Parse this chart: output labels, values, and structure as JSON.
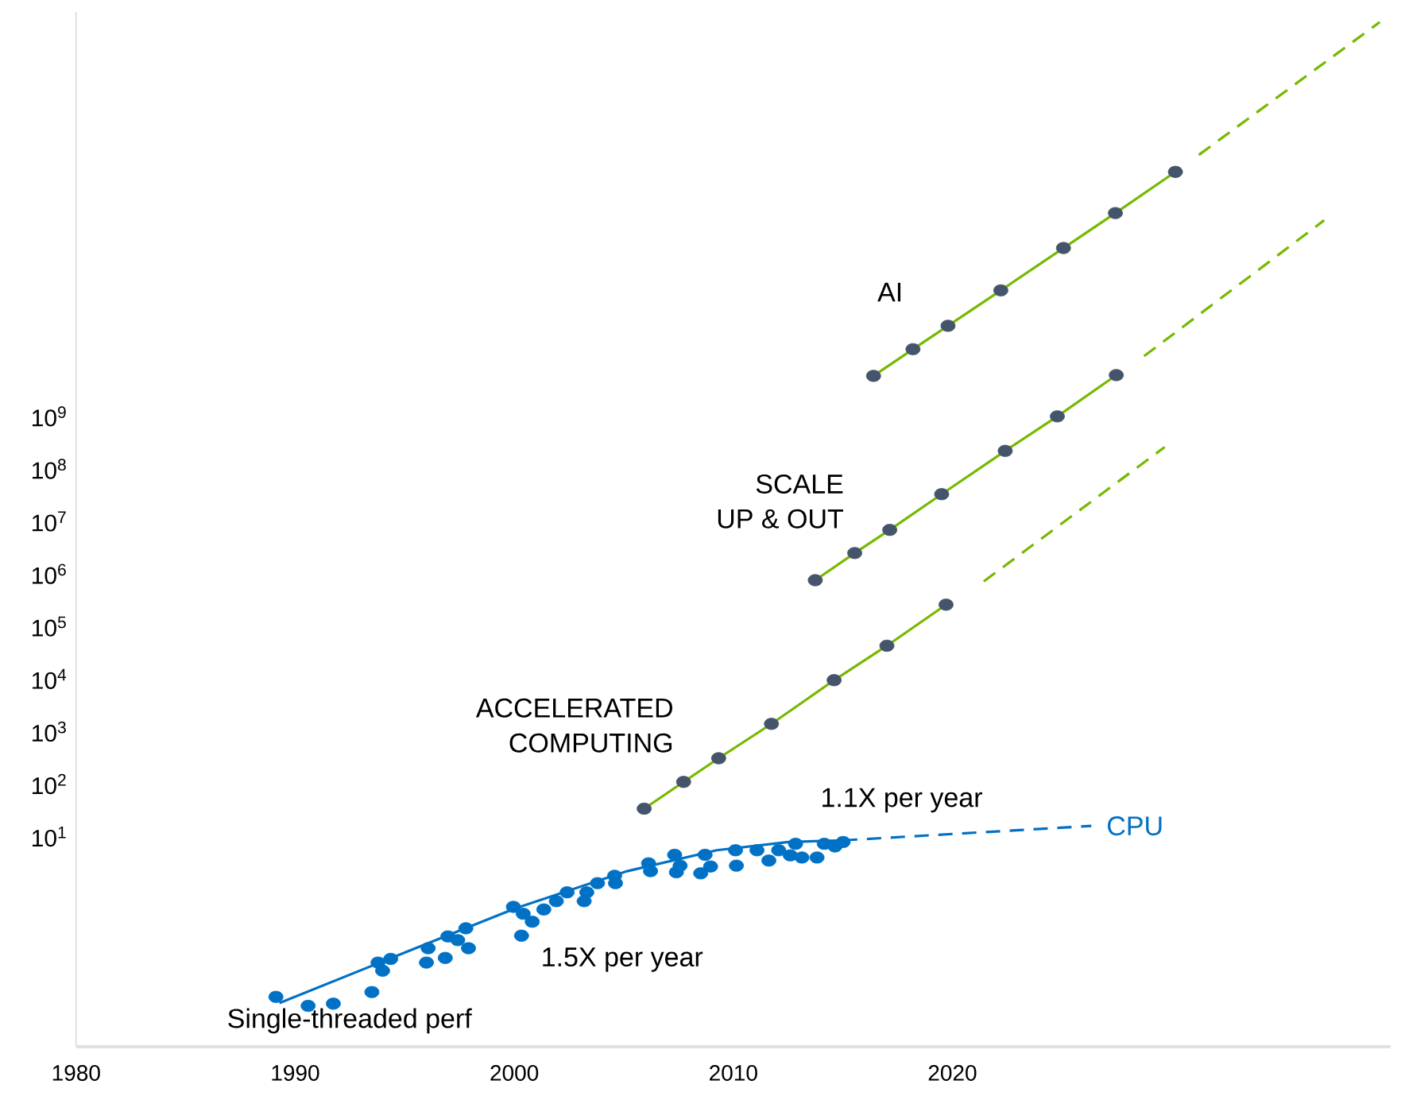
{
  "chart_data": {
    "type": "line",
    "log": "y",
    "grid": false,
    "xlim": [
      1980,
      2040
    ],
    "ylim": [
      0.001,
      5e+16
    ],
    "xticks": [
      1980,
      1990,
      2000,
      2010,
      2020
    ],
    "yticks": [
      {
        "value": 10,
        "label": "10$^{1}$"
      },
      {
        "value": 100,
        "label": "10$^{2}$"
      },
      {
        "value": 1000,
        "label": "10$^{3}$"
      },
      {
        "value": 10000,
        "label": "10$^{4}$"
      },
      {
        "value": 100000,
        "label": "10$^{5}$"
      },
      {
        "value": 1000000,
        "label": "10$^{6}$"
      },
      {
        "value": 10000000,
        "label": "10$^{7}$"
      },
      {
        "value": 100000000,
        "label": "10$^{8}$"
      },
      {
        "value": 1000000000,
        "label": "10$^{9}$"
      }
    ],
    "annotations": [
      "AI",
      "SCALE",
      "UP & OUT",
      "ACCELERATED",
      "COMPUTING",
      "1.1X per year",
      "1.5X per year",
      "Single-threaded perf"
    ],
    "series": [
      {
        "type": "scatter",
        "color": "#0071c5",
        "x": [
          1989.12,
          1990.59,
          1991.74,
          1993.5,
          1993.78,
          1993.99,
          1994.36,
          1995.99,
          1996.07,
          1996.85,
          1996.97,
          1997.42,
          1997.79,
          1997.91,
          1999.96,
          2000.33,
          2000.41,
          2000.82,
          2001.35,
          2001.92,
          2002.41,
          2003.19,
          2003.31,
          2003.8,
          2004.58,
          2004.62,
          2006.13,
          2006.22,
          2007.32,
          2007.4,
          2007.57,
          2008.51,
          2008.71,
          2008.96,
          2010.1,
          2010.14,
          2011.08,
          2011.62,
          2012.07,
          2012.6,
          2012.84,
          2013.13,
          2013.82,
          2014.15,
          2014.64,
          2015.01
        ],
        "values": [
          0.0089,
          0.006,
          0.0066,
          0.011,
          0.04,
          0.028,
          0.047,
          0.04,
          0.075,
          0.049,
          0.126,
          0.107,
          0.18,
          0.075,
          0.46,
          0.13,
          0.34,
          0.24,
          0.41,
          0.59,
          0.87,
          0.59,
          0.87,
          1.3,
          1.8,
          1.3,
          3.1,
          2.2,
          4.5,
          2.1,
          2.8,
          2.0,
          4.5,
          2.7,
          5.5,
          2.8,
          5.5,
          3.5,
          5.5,
          4.4,
          7.3,
          4.0,
          4.0,
          7.3,
          6.5,
          7.9
        ]
      },
      {
        "line_style": "solid",
        "color": "#0071c5",
        "x": [
          1989.28,
          1994.11,
          2000.04,
          2005.15,
          2009.24,
          2012.52,
          2015.01
        ],
        "values": [
          0.0068,
          0.044,
          0.43,
          2.2,
          5.5,
          7.9,
          8.5
        ]
      },
      {
        "line_style": "dashed",
        "name": "CPU",
        "color": "#0071c5",
        "x": [
          2015.01,
          2026.34
        ],
        "values": [
          8.5,
          16
        ]
      },
      {
        "line_style": "solid",
        "color": "#76b900",
        "x": [
          2005.93,
          2007.73,
          2009.33,
          2011.74,
          2014.6,
          2017.01,
          2019.71
        ],
        "values": [
          34,
          110,
          310,
          1400,
          9500,
          43000,
          260000
        ]
      },
      {
        "line_style": "dashed",
        "color": "#76b900",
        "x": [
          2021.43,
          2029.69
        ],
        "values": [
          720000,
          260000000
        ]
      },
      {
        "line_style": "solid",
        "color": "#76b900",
        "x": [
          2013.74,
          2015.54,
          2017.14,
          2019.51,
          2022.41,
          2024.79,
          2027.48
        ],
        "values": [
          760000,
          2500000,
          6900000,
          33000000,
          220000000,
          1000000000,
          6100000000
        ]
      },
      {
        "line_style": "dashed",
        "color": "#76b900",
        "x": [
          2028.75,
          2036.97
        ],
        "values": [
          14000000000,
          5400000000000
        ]
      },
      {
        "line_style": "solid",
        "color": "#76b900",
        "x": [
          2016.4,
          2018.2,
          2019.8,
          2022.21,
          2025.07,
          2027.44,
          2030.18
        ],
        "values": [
          5900000000,
          19000000000,
          53000000000,
          250000000000,
          1600000000000,
          7400000000000,
          45000000000000
        ]
      },
      {
        "line_style": "dashed",
        "color": "#76b900",
        "x": [
          2031.25,
          2039.51
        ],
        "values": [
          95000000000000,
          32000000000000000
        ]
      },
      {
        "type": "scatter",
        "color": "#44546a",
        "x": [
          2005.93,
          2007.73,
          2009.33,
          2011.74,
          2014.6,
          2017.01,
          2019.71
        ],
        "values": [
          34,
          110,
          310,
          1400,
          9500,
          43000,
          260000
        ]
      },
      {
        "type": "scatter",
        "color": "#44546a",
        "x": [
          2013.74,
          2015.54,
          2017.14,
          2019.51,
          2022.41,
          2024.79,
          2027.48
        ],
        "values": [
          760000,
          2500000,
          6900000,
          33000000,
          220000000,
          1000000000,
          6100000000
        ]
      },
      {
        "type": "scatter",
        "color": "#44546a",
        "x": [
          2016.4,
          2018.2,
          2019.8,
          2022.21,
          2025.07,
          2027.44,
          2030.18
        ],
        "values": [
          5900000000,
          19000000000,
          53000000000,
          250000000000,
          1600000000000,
          7400000000000,
          45000000000000
        ]
      }
    ]
  }
}
